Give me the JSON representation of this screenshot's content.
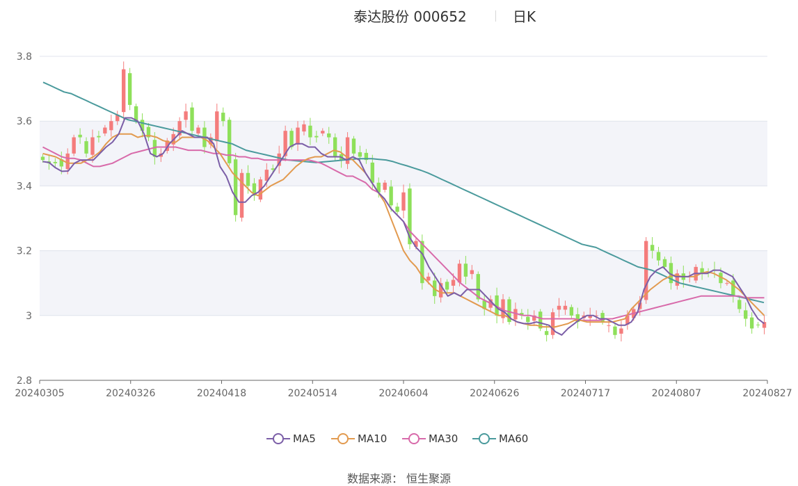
{
  "header": {
    "title": "泰达股份 000652",
    "period": "日K"
  },
  "source": "数据来源： 恒生聚源",
  "colors": {
    "up": "#f47c7c",
    "down": "#8ee05a",
    "MA5": "#7b5ea7",
    "MA10": "#e29a4f",
    "MA30": "#d86aaa",
    "MA60": "#4a9a9c"
  },
  "chart_data": {
    "type": "candlestick",
    "ylim": [
      2.8,
      3.8
    ],
    "yticks": [
      "2.8",
      "3",
      "3.2",
      "3.4",
      "3.6",
      "3.8"
    ],
    "xticks": [
      "20240305",
      "20240326",
      "20240418",
      "20240514",
      "20240604",
      "20240626",
      "20240717",
      "20240807",
      "20240827"
    ],
    "legend": [
      "MA5",
      "MA10",
      "MA30",
      "MA60"
    ],
    "close": [
      3.48,
      3.47,
      3.47,
      3.46,
      3.5,
      3.55,
      3.55,
      3.5,
      3.55,
      3.55,
      3.58,
      3.6,
      3.62,
      3.76,
      3.65,
      3.6,
      3.57,
      3.55,
      3.49,
      3.5,
      3.54,
      3.56,
      3.6,
      3.63,
      3.57,
      3.58,
      3.52,
      3.55,
      3.63,
      3.6,
      3.47,
      3.31,
      3.44,
      3.4,
      3.37,
      3.42,
      3.45,
      3.45,
      3.5,
      3.57,
      3.52,
      3.58,
      3.59,
      3.55,
      3.55,
      3.57,
      3.55,
      3.49,
      3.48,
      3.55,
      3.5,
      3.49,
      3.48,
      3.41,
      3.38,
      3.41,
      3.34,
      3.32,
      3.38,
      3.22,
      3.23,
      3.1,
      3.12,
      3.06,
      3.1,
      3.08,
      3.11,
      3.16,
      3.12,
      3.14,
      3.05,
      3.02,
      3.05,
      3.0,
      3.05,
      2.98,
      3.02,
      3.0,
      2.98,
      3.0,
      2.96,
      2.94,
      3.01,
      3.03,
      3.03,
      3.0,
      2.98,
      3.0,
      3.0,
      3.0,
      2.98,
      2.97,
      2.94,
      2.96,
      3.0,
      3.02,
      3.04,
      3.23,
      3.2,
      3.17,
      3.15,
      3.1,
      3.13,
      3.11,
      3.12,
      3.15,
      3.13,
      3.13,
      3.14,
      3.1,
      3.1,
      3.06,
      3.02,
      2.99,
      2.96,
      2.97,
      2.98
    ],
    "ma5": [
      3.475,
      3.472,
      3.456,
      3.445,
      3.446,
      3.47,
      3.48,
      3.48,
      3.48,
      3.5,
      3.52,
      3.535,
      3.56,
      3.61,
      3.61,
      3.6,
      3.56,
      3.5,
      3.49,
      3.5,
      3.53,
      3.55,
      3.57,
      3.56,
      3.55,
      3.55,
      3.55,
      3.53,
      3.46,
      3.43,
      3.38,
      3.35,
      3.35,
      3.37,
      3.38,
      3.4,
      3.43,
      3.46,
      3.49,
      3.52,
      3.53,
      3.53,
      3.52,
      3.52,
      3.5,
      3.49,
      3.49,
      3.49,
      3.48,
      3.49,
      3.48,
      3.44,
      3.41,
      3.38,
      3.36,
      3.33,
      3.31,
      3.29,
      3.24,
      3.21,
      3.19,
      3.15,
      3.12,
      3.09,
      3.06,
      3.07,
      3.06,
      3.08,
      3.08,
      3.08,
      3.06,
      3.04,
      3.02,
      3.01,
      2.99,
      2.98,
      2.975,
      2.975,
      2.98,
      2.975,
      2.97,
      2.95,
      2.94,
      2.96,
      2.975,
      2.99,
      3.0,
      3.0,
      2.99,
      2.99,
      2.98,
      2.97,
      2.97,
      2.98,
      3.01,
      3.08,
      3.12,
      3.14,
      3.15,
      3.13,
      3.12,
      3.12,
      3.12,
      3.13,
      3.13,
      3.13,
      3.14,
      3.14,
      3.13,
      3.12,
      3.09,
      3.06,
      3.02,
      2.99,
      2.975
    ],
    "ma10": [
      3.5,
      3.495,
      3.49,
      3.48,
      3.47,
      3.47,
      3.47,
      3.48,
      3.49,
      3.505,
      3.53,
      3.55,
      3.56,
      3.56,
      3.56,
      3.55,
      3.555,
      3.555,
      3.55,
      3.54,
      3.535,
      3.535,
      3.55,
      3.55,
      3.55,
      3.55,
      3.54,
      3.52,
      3.5,
      3.47,
      3.44,
      3.42,
      3.4,
      3.38,
      3.37,
      3.385,
      3.4,
      3.41,
      3.42,
      3.44,
      3.46,
      3.475,
      3.485,
      3.49,
      3.49,
      3.5,
      3.51,
      3.505,
      3.49,
      3.48,
      3.46,
      3.44,
      3.41,
      3.38,
      3.35,
      3.3,
      3.25,
      3.2,
      3.17,
      3.15,
      3.12,
      3.1,
      3.08,
      3.07,
      3.07,
      3.07,
      3.06,
      3.05,
      3.04,
      3.03,
      3.02,
      3.01,
      3.0,
      3.0,
      2.99,
      2.98,
      2.975,
      2.97,
      2.97,
      2.965,
      2.965,
      2.965,
      2.97,
      2.975,
      2.985,
      2.985,
      2.98,
      2.98,
      2.98,
      2.98,
      2.98,
      2.985,
      2.99,
      3.02,
      3.04,
      3.06,
      3.08,
      3.095,
      3.11,
      3.12,
      3.125,
      3.12,
      3.12,
      3.12,
      3.13,
      3.135,
      3.13,
      3.12,
      3.11,
      3.095,
      3.08,
      3.06,
      3.04,
      3.02,
      3.0
    ],
    "ma30": [
      3.52,
      3.51,
      3.5,
      3.49,
      3.485,
      3.485,
      3.48,
      3.47,
      3.46,
      3.46,
      3.465,
      3.47,
      3.48,
      3.49,
      3.5,
      3.505,
      3.51,
      3.515,
      3.52,
      3.52,
      3.52,
      3.52,
      3.515,
      3.51,
      3.51,
      3.51,
      3.505,
      3.5,
      3.5,
      3.495,
      3.495,
      3.49,
      3.49,
      3.485,
      3.485,
      3.48,
      3.48,
      3.48,
      3.48,
      3.48,
      3.48,
      3.48,
      3.48,
      3.475,
      3.47,
      3.46,
      3.45,
      3.44,
      3.43,
      3.43,
      3.42,
      3.41,
      3.39,
      3.38,
      3.36,
      3.33,
      3.31,
      3.29,
      3.26,
      3.24,
      3.22,
      3.2,
      3.18,
      3.16,
      3.14,
      3.12,
      3.1,
      3.085,
      3.07,
      3.055,
      3.045,
      3.035,
      3.025,
      3.015,
      3.01,
      3.005,
      3.0,
      3.0,
      2.995,
      2.99,
      2.99,
      2.99,
      2.99,
      2.99,
      2.99,
      2.985,
      2.985,
      2.985,
      2.985,
      2.99,
      2.99,
      2.995,
      3.0,
      3.005,
      3.01,
      3.015,
      3.02,
      3.025,
      3.03,
      3.035,
      3.04,
      3.045,
      3.05,
      3.055,
      3.06,
      3.06,
      3.06,
      3.06,
      3.06,
      3.06,
      3.06,
      3.055,
      3.055,
      3.055,
      3.055
    ],
    "ma60": [
      3.72,
      3.71,
      3.7,
      3.69,
      3.685,
      3.675,
      3.665,
      3.655,
      3.645,
      3.635,
      3.625,
      3.615,
      3.605,
      3.6,
      3.595,
      3.59,
      3.585,
      3.58,
      3.575,
      3.57,
      3.565,
      3.56,
      3.555,
      3.55,
      3.545,
      3.54,
      3.535,
      3.53,
      3.52,
      3.51,
      3.505,
      3.5,
      3.495,
      3.49,
      3.485,
      3.48,
      3.478,
      3.476,
      3.474,
      3.472,
      3.474,
      3.476,
      3.478,
      3.48,
      3.482,
      3.484,
      3.484,
      3.484,
      3.482,
      3.48,
      3.475,
      3.468,
      3.462,
      3.455,
      3.448,
      3.44,
      3.43,
      3.42,
      3.41,
      3.4,
      3.39,
      3.38,
      3.37,
      3.36,
      3.35,
      3.34,
      3.33,
      3.32,
      3.31,
      3.3,
      3.29,
      3.28,
      3.27,
      3.26,
      3.25,
      3.24,
      3.23,
      3.22,
      3.215,
      3.21,
      3.2,
      3.19,
      3.18,
      3.17,
      3.16,
      3.15,
      3.145,
      3.14,
      3.13,
      3.12,
      3.11,
      3.1,
      3.095,
      3.09,
      3.085,
      3.08,
      3.075,
      3.07,
      3.065,
      3.06,
      3.055,
      3.05,
      3.045,
      3.04
    ]
  }
}
